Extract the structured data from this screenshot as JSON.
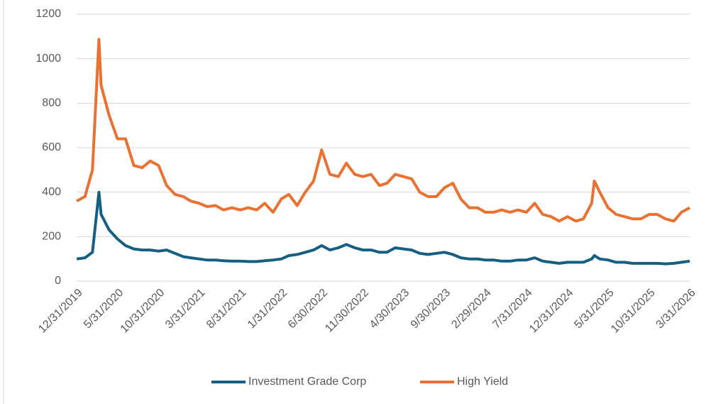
{
  "chart_data": {
    "type": "line",
    "x": [
      "12/31/2019",
      "1/31/2020",
      "2/28/2020",
      "3/23/2020",
      "3/31/2020",
      "4/30/2020",
      "5/31/2020",
      "6/30/2020",
      "7/31/2020",
      "8/31/2020",
      "9/30/2020",
      "10/31/2020",
      "11/30/2020",
      "12/31/2020",
      "1/31/2021",
      "2/28/2021",
      "3/31/2021",
      "4/30/2021",
      "5/31/2021",
      "6/30/2021",
      "7/31/2021",
      "8/31/2021",
      "9/30/2021",
      "10/31/2021",
      "11/30/2021",
      "12/31/2021",
      "1/31/2022",
      "2/28/2022",
      "3/31/2022",
      "4/30/2022",
      "5/31/2022",
      "6/30/2022",
      "7/31/2022",
      "8/31/2022",
      "9/30/2022",
      "10/31/2022",
      "11/30/2022",
      "12/31/2022",
      "1/31/2023",
      "2/28/2023",
      "3/31/2023",
      "4/30/2023",
      "5/31/2023",
      "6/30/2023",
      "7/31/2023",
      "8/31/2023",
      "9/30/2023",
      "10/31/2023",
      "11/30/2023",
      "12/31/2023",
      "1/31/2024",
      "2/29/2024",
      "3/31/2024",
      "4/30/2024",
      "5/31/2024",
      "6/30/2024",
      "7/31/2024",
      "8/31/2024",
      "9/30/2024",
      "10/31/2024",
      "11/30/2024",
      "12/31/2024",
      "1/31/2025",
      "2/28/2025",
      "3/31/2025",
      "4/10/2025",
      "4/30/2025",
      "5/31/2025",
      "6/30/2025",
      "7/31/2025",
      "8/31/2025",
      "9/30/2025",
      "10/31/2025",
      "11/30/2025",
      "12/31/2025",
      "1/31/2026",
      "2/28/2026",
      "3/31/2026"
    ],
    "series": [
      {
        "name": "Investment Grade Corp",
        "color": "#156082",
        "values": [
          100,
          105,
          130,
          400,
          300,
          230,
          190,
          160,
          145,
          140,
          140,
          135,
          140,
          125,
          110,
          105,
          100,
          95,
          95,
          92,
          90,
          90,
          88,
          88,
          92,
          95,
          100,
          115,
          120,
          130,
          140,
          160,
          140,
          150,
          165,
          150,
          140,
          140,
          130,
          130,
          150,
          145,
          140,
          125,
          120,
          125,
          130,
          120,
          105,
          100,
          100,
          95,
          95,
          90,
          90,
          95,
          95,
          105,
          90,
          85,
          80,
          85,
          85,
          85,
          100,
          115,
          100,
          95,
          85,
          85,
          80,
          80,
          80,
          80,
          78,
          80,
          85,
          90
        ]
      },
      {
        "name": "High Yield",
        "color": "#e97132",
        "values": [
          360,
          380,
          500,
          1087,
          880,
          745,
          640,
          640,
          520,
          510,
          540,
          520,
          430,
          390,
          380,
          360,
          350,
          335,
          340,
          320,
          330,
          320,
          330,
          320,
          350,
          310,
          370,
          390,
          340,
          400,
          450,
          590,
          480,
          470,
          530,
          480,
          470,
          480,
          430,
          440,
          480,
          470,
          460,
          400,
          380,
          380,
          420,
          440,
          370,
          330,
          330,
          310,
          310,
          320,
          310,
          320,
          310,
          350,
          300,
          290,
          270,
          290,
          270,
          280,
          350,
          450,
          400,
          330,
          300,
          290,
          280,
          280,
          300,
          300,
          280,
          270,
          310,
          330
        ]
      }
    ],
    "xticks": [
      "12/31/2019",
      "5/31/2020",
      "10/31/2020",
      "3/31/2021",
      "8/31/2021",
      "1/31/2022",
      "6/30/2022",
      "11/30/2022",
      "4/30/2023",
      "9/30/2023",
      "2/29/2024",
      "7/31/2024",
      "12/31/2024",
      "5/31/2025",
      "10/31/2025",
      "3/31/2026"
    ],
    "xlim": [
      "12/31/2019",
      "3/31/2026"
    ],
    "ylim": [
      0,
      1200
    ],
    "yticks": [
      0,
      200,
      400,
      600,
      800,
      1000,
      1200
    ],
    "grid": true,
    "legend": "bottom"
  }
}
